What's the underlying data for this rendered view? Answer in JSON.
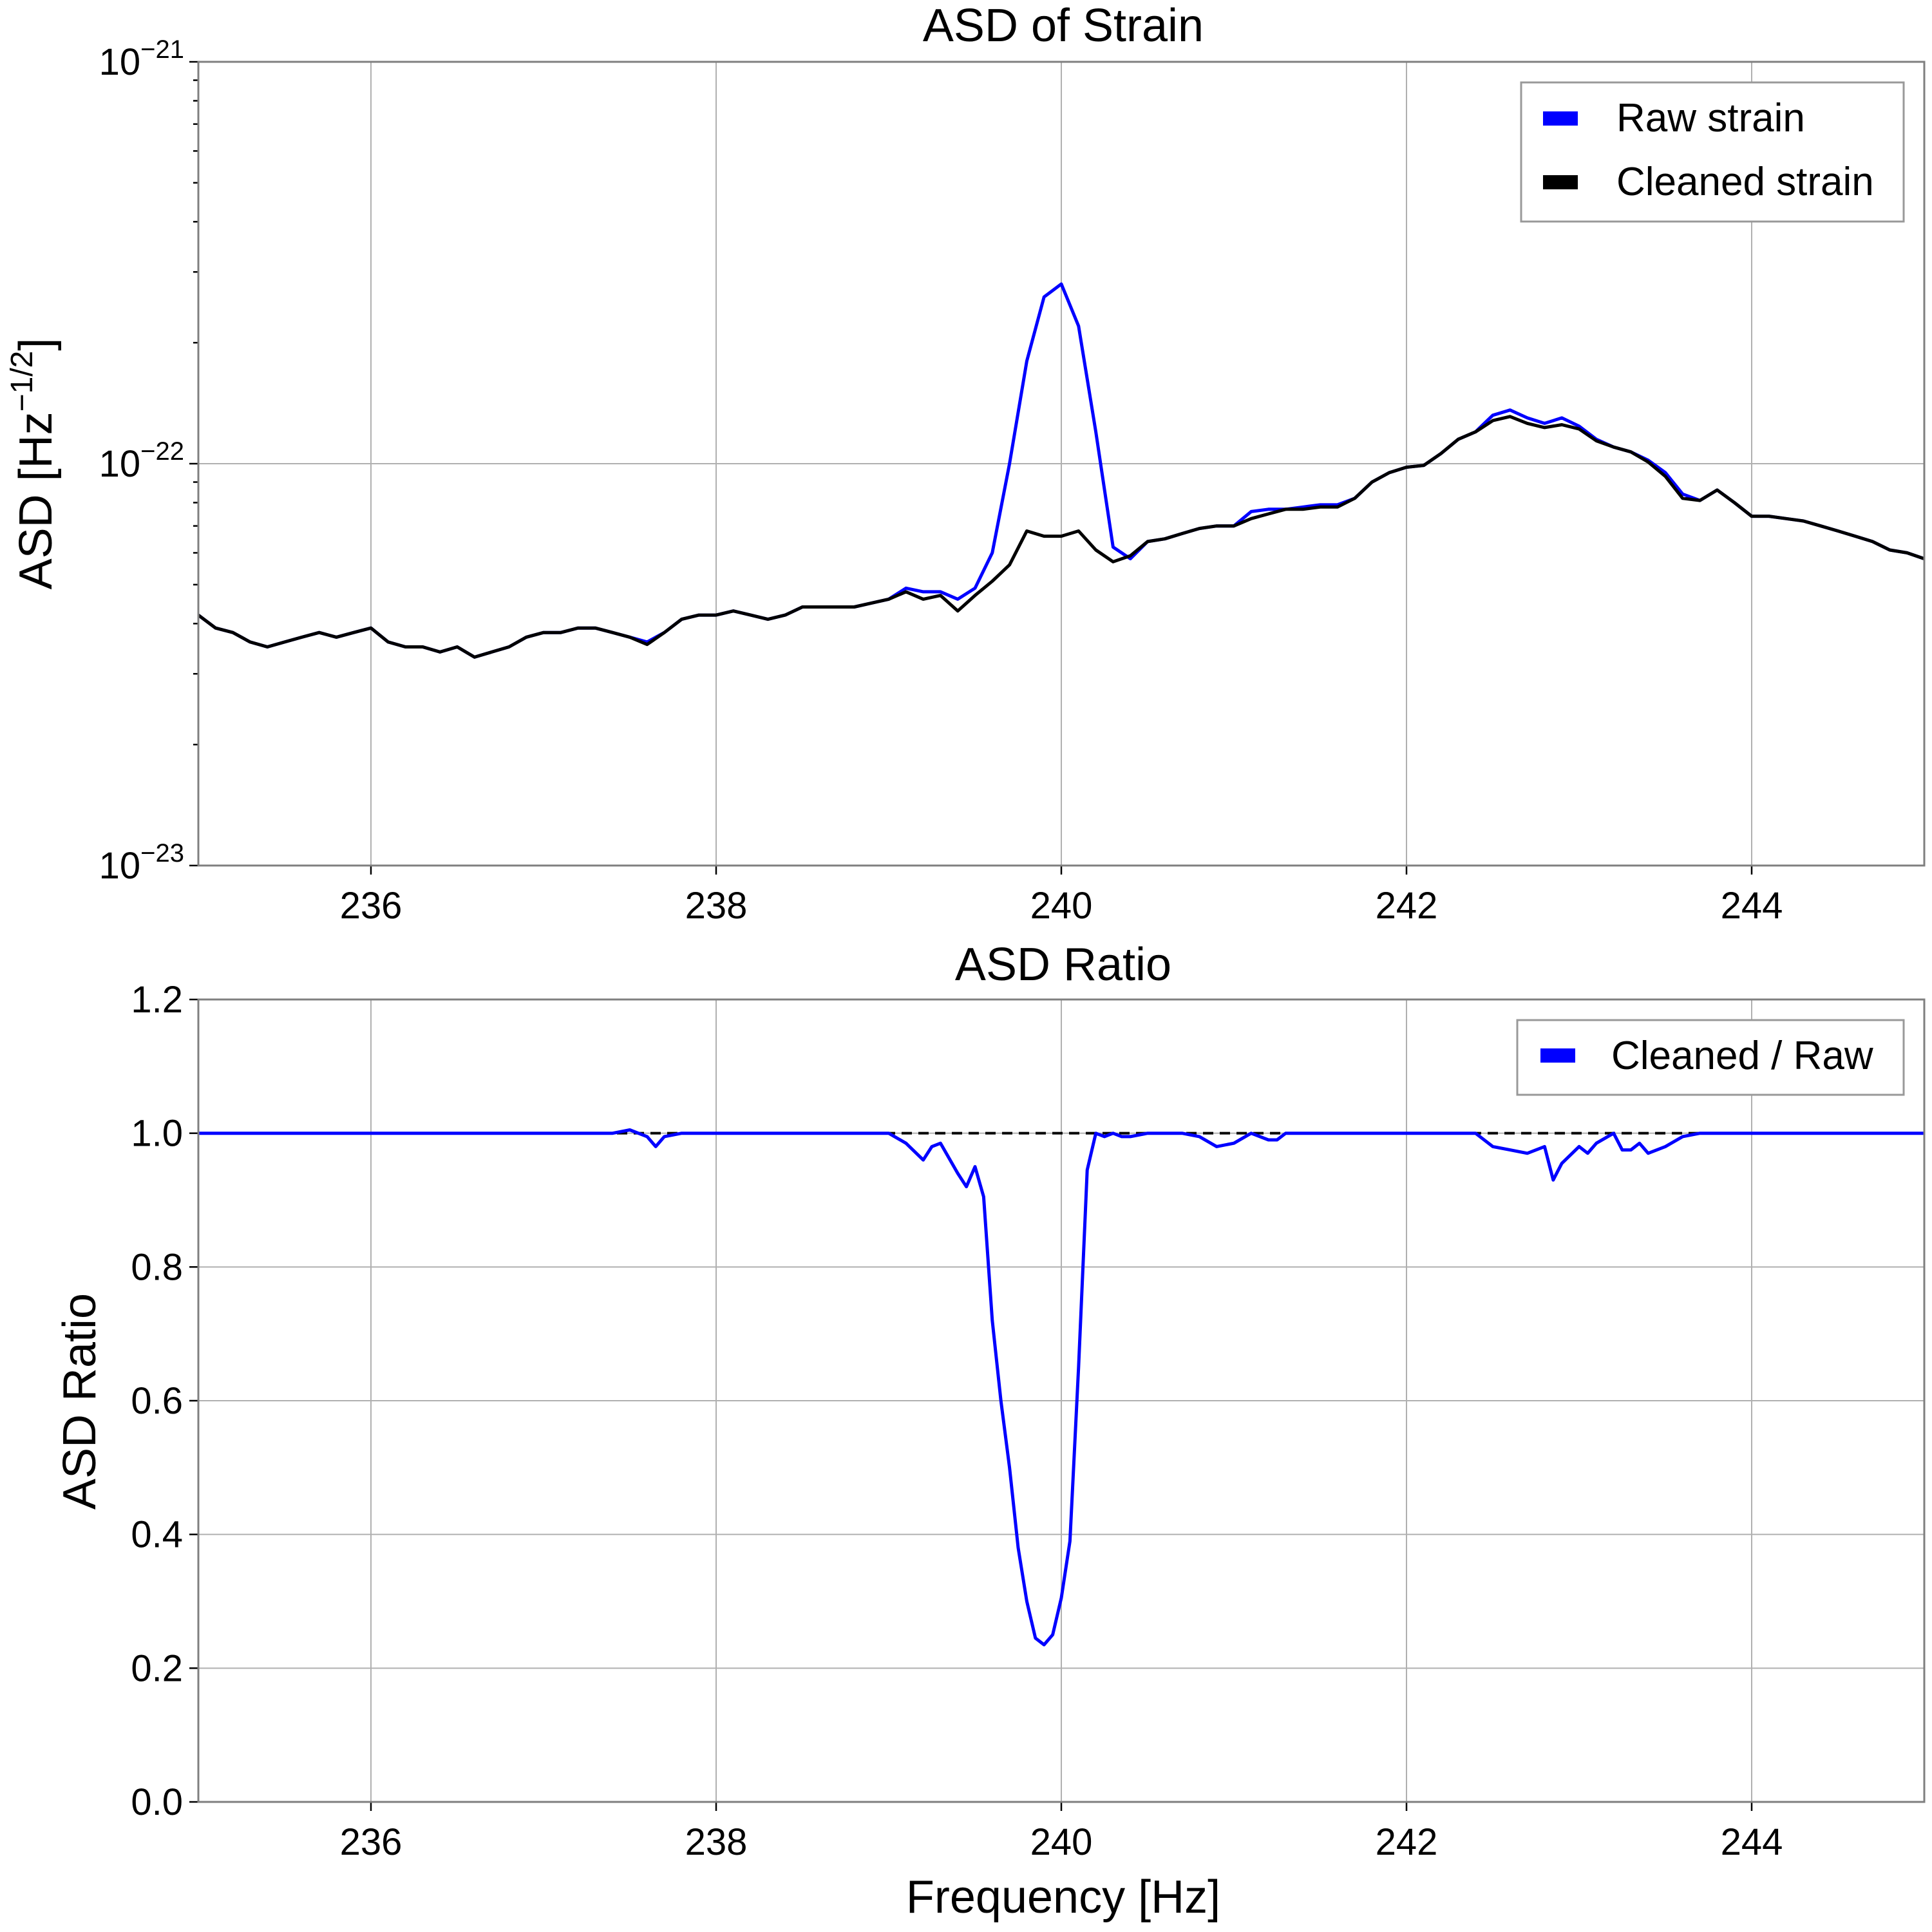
{
  "colors": {
    "raw": "#0000ff",
    "cleaned": "#000000",
    "ratio": "#0000ff",
    "reference": "#000000"
  },
  "chart_data": [
    {
      "type": "line",
      "title": "ASD of Strain",
      "xlabel": "",
      "ylabel": "ASD [Hz",
      "ylabel_exponent": "−1/2",
      "ylabel_close": "]",
      "yscale": "log",
      "xlim": [
        235,
        245
      ],
      "ylim": [
        1e-23,
        1e-21
      ],
      "xticks": [
        236,
        238,
        240,
        242,
        244
      ],
      "xtick_labels": [
        "236",
        "238",
        "240",
        "242",
        "244"
      ],
      "yticks": [
        {
          "value": 1e-21,
          "base": "10",
          "exponent": "−21"
        },
        {
          "value": 1e-22,
          "base": "10",
          "exponent": "−22"
        },
        {
          "value": 1e-23,
          "base": "10",
          "exponent": "−23"
        }
      ],
      "grid": true,
      "legend_position": "top-right",
      "series": [
        {
          "name": "Raw strain",
          "color": "#0000ff",
          "x": [
            235,
            235.1,
            235.2,
            235.3,
            235.4,
            235.5,
            235.6,
            235.7,
            235.8,
            235.9,
            236,
            236.1,
            236.2,
            236.3,
            236.4,
            236.5,
            236.6,
            236.7,
            236.8,
            236.9,
            237,
            237.1,
            237.2,
            237.3,
            237.4,
            237.5,
            237.6,
            237.7,
            237.8,
            237.9,
            238,
            238.1,
            238.2,
            238.3,
            238.4,
            238.5,
            238.6,
            238.7,
            238.8,
            238.9,
            239,
            239.1,
            239.2,
            239.3,
            239.4,
            239.5,
            239.6,
            239.7,
            239.8,
            239.9,
            240,
            240.1,
            240.2,
            240.3,
            240.4,
            240.5,
            240.6,
            240.7,
            240.8,
            240.9,
            241,
            241.1,
            241.2,
            241.3,
            241.4,
            241.5,
            241.6,
            241.7,
            241.8,
            241.9,
            242,
            242.1,
            242.2,
            242.3,
            242.4,
            242.5,
            242.6,
            242.7,
            242.8,
            242.9,
            243,
            243.1,
            243.2,
            243.3,
            243.4,
            243.5,
            243.6,
            243.7,
            243.8,
            243.9,
            244,
            244.1,
            244.2,
            244.3,
            244.4,
            244.5,
            244.6,
            244.7,
            244.8,
            244.9,
            245
          ],
          "y": [
            4.2e-23,
            3.9e-23,
            3.8e-23,
            3.6e-23,
            3.5e-23,
            3.6e-23,
            3.7e-23,
            3.8e-23,
            3.7e-23,
            3.8e-23,
            3.9e-23,
            3.6e-23,
            3.5e-23,
            3.5e-23,
            3.4e-23,
            3.5e-23,
            3.3e-23,
            3.4e-23,
            3.5e-23,
            3.7e-23,
            3.8e-23,
            3.8e-23,
            3.9e-23,
            3.9e-23,
            3.8e-23,
            3.7e-23,
            3.6e-23,
            3.8e-23,
            4.1e-23,
            4.2e-23,
            4.2e-23,
            4.3e-23,
            4.2e-23,
            4.1e-23,
            4.2e-23,
            4.4e-23,
            4.4e-23,
            4.4e-23,
            4.4e-23,
            4.5e-23,
            4.6e-23,
            4.9e-23,
            4.8e-23,
            4.8e-23,
            4.6e-23,
            4.9e-23,
            6e-23,
            1e-22,
            1.8e-22,
            2.6e-22,
            2.8e-22,
            2.2e-22,
            1.2e-22,
            6.2e-23,
            5.8e-23,
            6.4e-23,
            6.5e-23,
            6.7e-23,
            6.9e-23,
            7e-23,
            7e-23,
            7.6e-23,
            7.7e-23,
            7.7e-23,
            7.8e-23,
            7.9e-23,
            7.9e-23,
            8.2e-23,
            9e-23,
            9.5e-23,
            9.8e-23,
            9.9e-23,
            1.06e-22,
            1.15e-22,
            1.2e-22,
            1.32e-22,
            1.36e-22,
            1.3e-22,
            1.26e-22,
            1.3e-22,
            1.24e-22,
            1.15e-22,
            1.1e-22,
            1.07e-22,
            1.02e-22,
            9.5e-23,
            8.4e-23,
            8.1e-23,
            8.6e-23,
            8e-23,
            7.4e-23,
            7.4e-23,
            7.3e-23,
            7.2e-23,
            7e-23,
            6.8e-23,
            6.6e-23,
            6.4e-23,
            6.1e-23,
            6e-23,
            5.8e-23
          ]
        },
        {
          "name": "Cleaned strain",
          "color": "#000000",
          "x": [
            235,
            235.1,
            235.2,
            235.3,
            235.4,
            235.5,
            235.6,
            235.7,
            235.8,
            235.9,
            236,
            236.1,
            236.2,
            236.3,
            236.4,
            236.5,
            236.6,
            236.7,
            236.8,
            236.9,
            237,
            237.1,
            237.2,
            237.3,
            237.4,
            237.5,
            237.6,
            237.7,
            237.8,
            237.9,
            238,
            238.1,
            238.2,
            238.3,
            238.4,
            238.5,
            238.6,
            238.7,
            238.8,
            238.9,
            239,
            239.1,
            239.2,
            239.3,
            239.4,
            239.5,
            239.6,
            239.7,
            239.8,
            239.9,
            240,
            240.1,
            240.2,
            240.3,
            240.4,
            240.5,
            240.6,
            240.7,
            240.8,
            240.9,
            241,
            241.1,
            241.2,
            241.3,
            241.4,
            241.5,
            241.6,
            241.7,
            241.8,
            241.9,
            242,
            242.1,
            242.2,
            242.3,
            242.4,
            242.5,
            242.6,
            242.7,
            242.8,
            242.9,
            243,
            243.1,
            243.2,
            243.3,
            243.4,
            243.5,
            243.6,
            243.7,
            243.8,
            243.9,
            244,
            244.1,
            244.2,
            244.3,
            244.4,
            244.5,
            244.6,
            244.7,
            244.8,
            244.9,
            245
          ],
          "y": [
            4.2e-23,
            3.9e-23,
            3.8e-23,
            3.6e-23,
            3.5e-23,
            3.6e-23,
            3.7e-23,
            3.8e-23,
            3.7e-23,
            3.8e-23,
            3.9e-23,
            3.6e-23,
            3.5e-23,
            3.5e-23,
            3.4e-23,
            3.5e-23,
            3.3e-23,
            3.4e-23,
            3.5e-23,
            3.7e-23,
            3.8e-23,
            3.8e-23,
            3.9e-23,
            3.9e-23,
            3.8e-23,
            3.7e-23,
            3.55e-23,
            3.8e-23,
            4.1e-23,
            4.2e-23,
            4.2e-23,
            4.3e-23,
            4.2e-23,
            4.1e-23,
            4.2e-23,
            4.4e-23,
            4.4e-23,
            4.4e-23,
            4.4e-23,
            4.5e-23,
            4.6e-23,
            4.8e-23,
            4.6e-23,
            4.7e-23,
            4.3e-23,
            4.7e-23,
            5.1e-23,
            5.6e-23,
            6.8e-23,
            6.6e-23,
            6.6e-23,
            6.8e-23,
            6.1e-23,
            5.7e-23,
            5.9e-23,
            6.4e-23,
            6.5e-23,
            6.7e-23,
            6.9e-23,
            7e-23,
            7e-23,
            7.3e-23,
            7.5e-23,
            7.7e-23,
            7.7e-23,
            7.8e-23,
            7.8e-23,
            8.2e-23,
            9e-23,
            9.5e-23,
            9.8e-23,
            9.9e-23,
            1.06e-22,
            1.15e-22,
            1.2e-22,
            1.28e-22,
            1.31e-22,
            1.26e-22,
            1.23e-22,
            1.25e-22,
            1.22e-22,
            1.14e-22,
            1.1e-22,
            1.07e-22,
            1.01e-22,
            9.3e-23,
            8.2e-23,
            8.1e-23,
            8.6e-23,
            8e-23,
            7.4e-23,
            7.4e-23,
            7.3e-23,
            7.2e-23,
            7e-23,
            6.8e-23,
            6.6e-23,
            6.4e-23,
            6.1e-23,
            6e-23,
            5.8e-23
          ]
        }
      ]
    },
    {
      "type": "line",
      "title": "ASD Ratio",
      "xlabel": "Frequency [Hz]",
      "ylabel": "ASD Ratio",
      "yscale": "linear",
      "xlim": [
        235,
        245
      ],
      "ylim": [
        0.0,
        1.2
      ],
      "xticks": [
        236,
        238,
        240,
        242,
        244
      ],
      "xtick_labels": [
        "236",
        "238",
        "240",
        "242",
        "244"
      ],
      "yticks": [
        0.0,
        0.2,
        0.4,
        0.6,
        0.8,
        1.0,
        1.2
      ],
      "ytick_labels": [
        "0.0",
        "0.2",
        "0.4",
        "0.6",
        "0.8",
        "1.0",
        "1.2"
      ],
      "grid": true,
      "legend_position": "top-right",
      "reference_line": {
        "y": 1.0,
        "style": "dashed",
        "color": "#000000"
      },
      "series": [
        {
          "name": "Cleaned / Raw",
          "color": "#0000ff",
          "x": [
            235,
            237.4,
            237.5,
            237.6,
            237.65,
            237.7,
            237.8,
            239.0,
            239.1,
            239.2,
            239.25,
            239.3,
            239.4,
            239.45,
            239.5,
            239.55,
            239.6,
            239.65,
            239.7,
            239.75,
            239.8,
            239.85,
            239.9,
            239.95,
            240.0,
            240.05,
            240.1,
            240.15,
            240.2,
            240.25,
            240.3,
            240.35,
            240.4,
            240.5,
            240.6,
            240.7,
            240.8,
            240.9,
            241.0,
            241.1,
            241.2,
            241.25,
            241.3,
            241.35,
            241.4,
            241.45,
            241.5,
            241.6,
            242.4,
            242.5,
            242.6,
            242.7,
            242.8,
            242.85,
            242.9,
            243.0,
            243.05,
            243.1,
            243.2,
            243.25,
            243.3,
            243.35,
            243.4,
            243.5,
            243.6,
            243.7,
            243.8,
            245
          ],
          "y": [
            1.0,
            1.0,
            1.005,
            0.995,
            0.98,
            0.995,
            1.0,
            1.0,
            0.985,
            0.96,
            0.98,
            0.985,
            0.94,
            0.92,
            0.95,
            0.905,
            0.72,
            0.6,
            0.5,
            0.38,
            0.3,
            0.245,
            0.235,
            0.25,
            0.305,
            0.39,
            0.65,
            0.945,
            1.0,
            0.995,
            1.0,
            0.995,
            0.995,
            1.0,
            1.0,
            1.0,
            0.995,
            0.98,
            0.985,
            1.0,
            0.99,
            0.99,
            1.0,
            1.0,
            1.0,
            1.0,
            1.0,
            1.0,
            1.0,
            0.98,
            0.975,
            0.97,
            0.98,
            0.93,
            0.955,
            0.98,
            0.97,
            0.985,
            1.0,
            0.975,
            0.975,
            0.985,
            0.97,
            0.98,
            0.995,
            1.0,
            1.0,
            1.0
          ]
        }
      ]
    }
  ]
}
